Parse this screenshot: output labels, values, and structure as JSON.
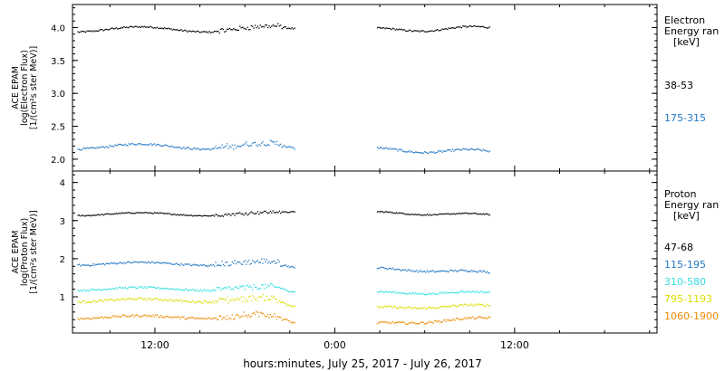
{
  "chart_data": [
    {
      "type": "scatter",
      "panel": "electron",
      "ylabel": [
        "ACE EPAM",
        "log(Electron Flux)",
        "[1/(cm²s ster MeV)]"
      ],
      "ylim": [
        1.82,
        4.35
      ],
      "yticks": [
        "2.0",
        "2.5",
        "3.0",
        "3.5",
        "4.0"
      ],
      "legend_title": [
        "Electron",
        "Energy ran",
        "[keV]"
      ],
      "series": [
        {
          "name": "38-53",
          "color": "#000000",
          "level": 3.98,
          "noise": 0.025,
          "gap_level_start": 3.97,
          "gap_level_end": 4.0,
          "first_end": 21.3
        },
        {
          "name": "175-315",
          "color": "#1f77c4",
          "level": 2.2,
          "noise": 0.03,
          "gap_level_start": 2.15,
          "gap_level_end": 2.12,
          "first_end": 21.3
        }
      ]
    },
    {
      "type": "scatter",
      "panel": "proton",
      "ylabel": [
        "ACE EPAM",
        "log(Proton Flux)",
        "[1/(cm²s ster MeV)]"
      ],
      "ylim": [
        0.05,
        4.3
      ],
      "yticks": [
        "1",
        "2",
        "3",
        "4"
      ],
      "legend_title": [
        "Proton",
        "Energy ran",
        "[keV]"
      ],
      "series": [
        {
          "name": "47-68",
          "color": "#000000",
          "level": 3.18,
          "noise": 0.03,
          "gap_level_start": 3.22,
          "gap_level_end": 3.16,
          "first_end": 21.3
        },
        {
          "name": "115-195",
          "color": "#1f77c4",
          "level": 1.88,
          "noise": 0.05,
          "gap_level_start": 1.75,
          "gap_level_end": 1.65,
          "first_end": 21.3
        },
        {
          "name": "310-580",
          "color": "#33dddd",
          "level": 1.22,
          "noise": 0.05,
          "gap_level_start": 1.12,
          "gap_level_end": 1.12,
          "first_end": 21.3
        },
        {
          "name": "795-1193",
          "color": "#dddd00",
          "level": 0.92,
          "noise": 0.06,
          "gap_level_start": 0.72,
          "gap_level_end": 0.78,
          "first_end": 21.3
        },
        {
          "name": "1060-1900",
          "color": "#ee8800",
          "level": 0.48,
          "noise": 0.06,
          "gap_level_start": 0.3,
          "gap_level_end": 0.45,
          "first_end": 21.3
        }
      ]
    }
  ],
  "x_axis": {
    "range_hours": [
      6.5,
      45.5
    ],
    "ticks": [
      {
        "label": "12:00",
        "hour": 12
      },
      {
        "label": "0:00",
        "hour": 24
      },
      {
        "label": "12:00",
        "hour": 36
      }
    ],
    "data_gaps_hours": [
      [
        21.3,
        26.8
      ],
      [
        34.3,
        45.5
      ]
    ],
    "xlabel": "hours:minutes, July 25, 2017 - July 26, 2017"
  }
}
